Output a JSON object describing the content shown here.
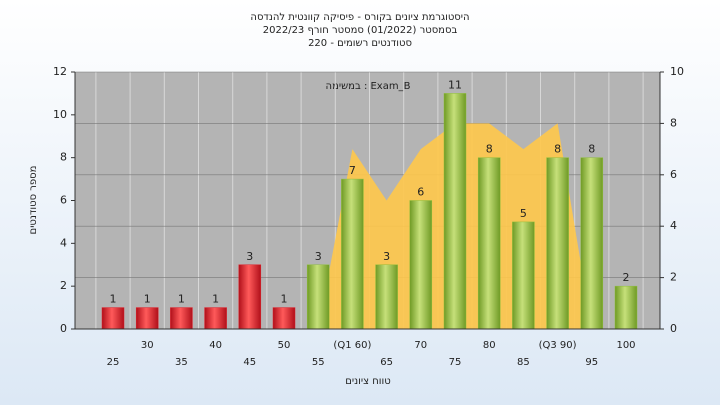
{
  "chart_data": {
    "type": "bar",
    "title": "היסטוגרמת ציונים בקורס - פיסיקה קוונטית להנדסה",
    "subtitle": "בסמסטר  (01/2022)  סמסטר חורף 2022/23",
    "subtitle2": "סטודנטים רשומים - 220",
    "annotation": "במשימה : Exam_B",
    "x_label": "טווח ציונים",
    "y_label": "מספר סטודנטים",
    "categories": [
      "25",
      "30",
      "35",
      "40",
      "45",
      "50",
      "55",
      "(Q1 60)",
      "65",
      "70",
      "75",
      "80",
      "85",
      "(Q3 90)",
      "95",
      "100"
    ],
    "series": [
      {
        "color": "#e0202a",
        "values": [
          1,
          1,
          1,
          1,
          3,
          1,
          null,
          null,
          null,
          null,
          null,
          null,
          null,
          null,
          null,
          null
        ]
      },
      {
        "color": "#8fbf3c",
        "values": [
          null,
          null,
          null,
          null,
          null,
          null,
          3,
          7,
          3,
          6,
          11,
          8,
          5,
          8,
          8,
          2
        ]
      },
      {
        "type": "area",
        "axis": "y2",
        "color": "#ffc84a",
        "values": [
          null,
          null,
          null,
          null,
          null,
          null,
          0,
          7,
          5,
          7,
          8,
          8,
          7,
          8,
          0,
          null
        ]
      }
    ],
    "ylim": [
      0,
      12
    ],
    "yticks": [
      0,
      2,
      4,
      6,
      8,
      10,
      12
    ],
    "y2lim": [
      0,
      10
    ],
    "y2ticks": [
      0,
      2,
      4,
      6,
      8,
      10
    ]
  }
}
